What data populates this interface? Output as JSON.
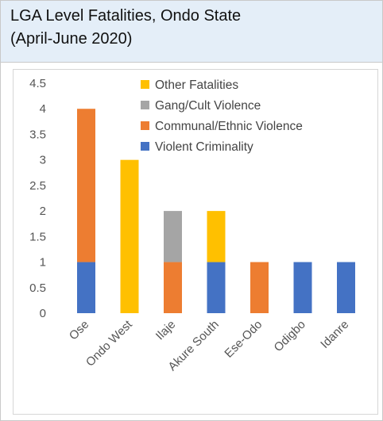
{
  "header": {
    "title_line1": "LGA Level Fatalities, Ondo State",
    "title_line2": "(April-June 2020)"
  },
  "chart_data": {
    "type": "bar",
    "stacked": true,
    "title": "LGA Level Fatalities, Ondo State (April-June 2020)",
    "categories": [
      "Ose",
      "Ondo West",
      "Ilaje",
      "Akure South",
      "Ese-Odo",
      "Odigbo",
      "Idanre"
    ],
    "series": [
      {
        "name": "Violent Criminality",
        "color": "#4472c4",
        "values": [
          1,
          0,
          0,
          1,
          0,
          1,
          1
        ]
      },
      {
        "name": "Communal/Ethnic Violence",
        "color": "#ed7d31",
        "values": [
          3,
          0,
          1,
          0,
          1,
          0,
          0
        ]
      },
      {
        "name": "Gang/Cult Violence",
        "color": "#a5a5a5",
        "values": [
          0,
          0,
          1,
          0,
          0,
          0,
          0
        ]
      },
      {
        "name": "Other Fatalities",
        "color": "#ffc000",
        "values": [
          0,
          3,
          0,
          1,
          0,
          0,
          0
        ]
      }
    ],
    "ylim": [
      0,
      4.5
    ],
    "yticks": [
      "0",
      "0.5",
      "1",
      "1.5",
      "2",
      "2.5",
      "3",
      "3.5",
      "4",
      "4.5"
    ],
    "grid": false,
    "legend": "top-right",
    "legend_order": [
      "Other Fatalities",
      "Gang/Cult Violence",
      "Communal/Ethnic Violence",
      "Violent Criminality"
    ]
  }
}
